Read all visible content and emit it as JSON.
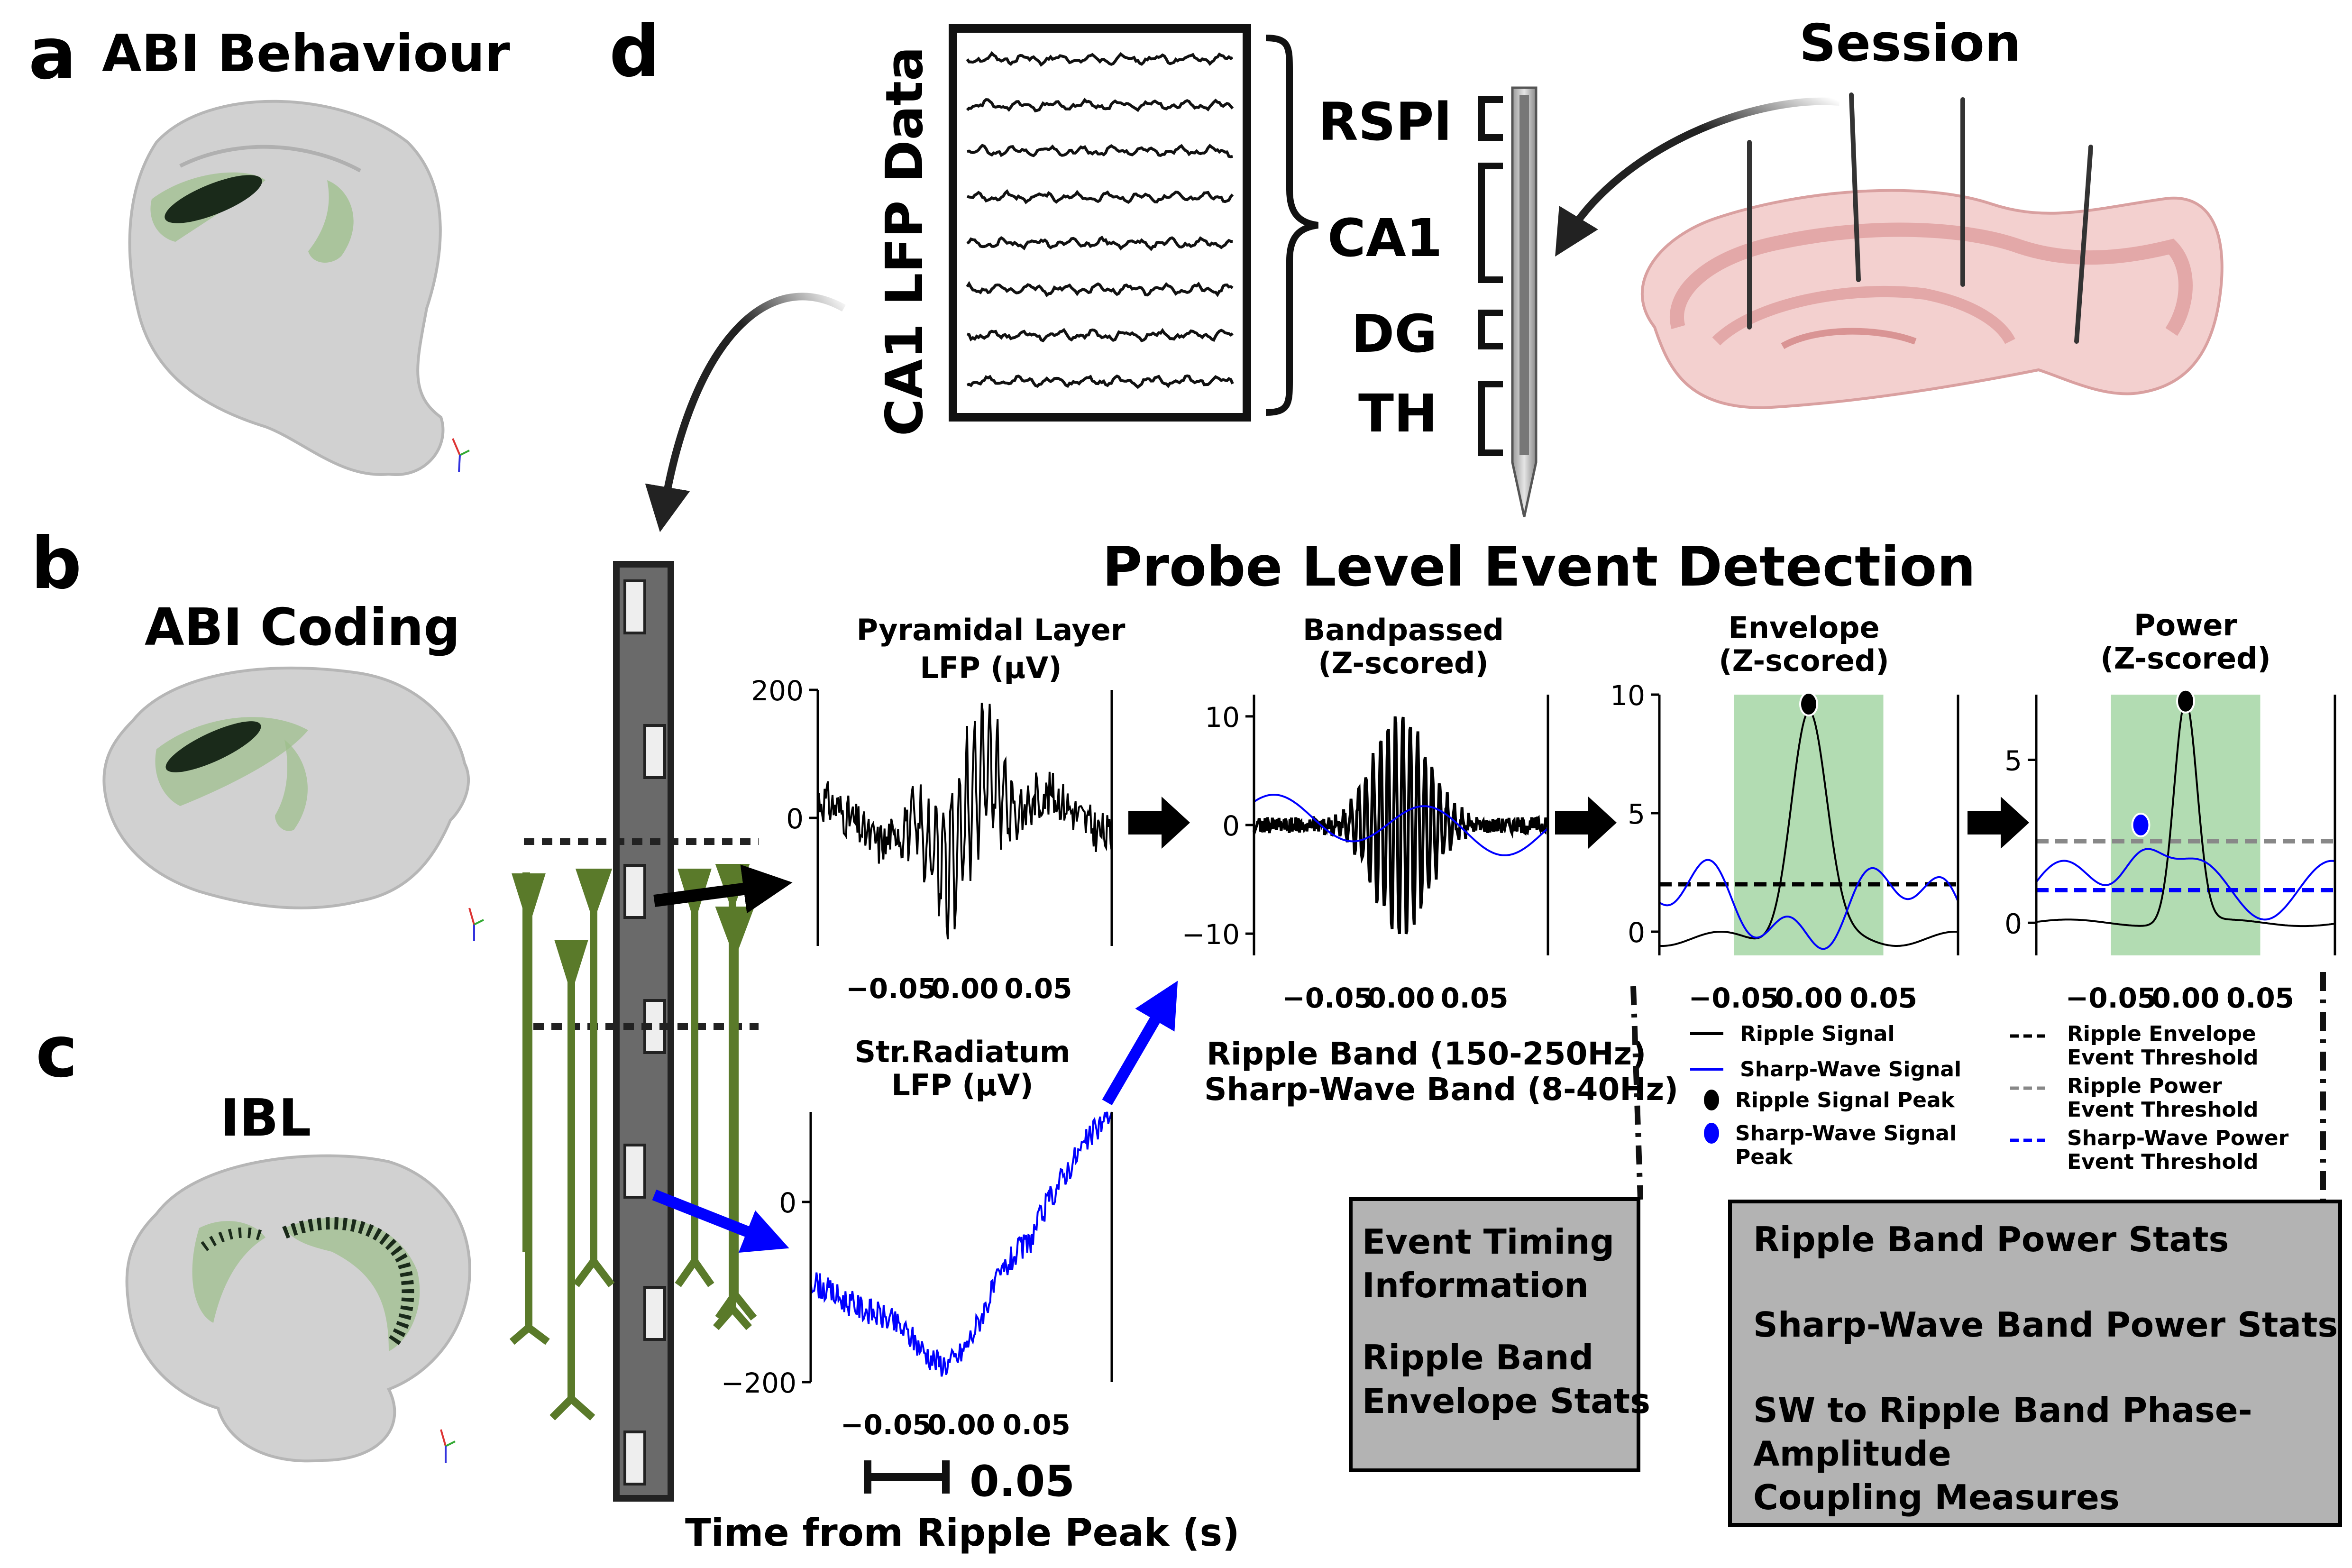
{
  "panel_a": {
    "letter": "a",
    "title": "ABI Behaviour"
  },
  "panel_b": {
    "letter": "b",
    "title": "ABI Coding"
  },
  "panel_c": {
    "letter": "c",
    "title": "IBL"
  },
  "panel_d": {
    "letter": "d",
    "session_label": "Session",
    "lfp_data_label": "CA1 LFP Data",
    "regions": [
      "RSPl",
      "CA1",
      "DG",
      "TH"
    ],
    "main_title": "Probe Level Event Detection",
    "time_axis_label": "Time from Ripple Peak (s)",
    "scale_bar_label": "0.05",
    "band_labels": [
      "Ripple Band (150-250Hz)",
      "Sharp-Wave Band (8-40Hz)"
    ],
    "box_timing": [
      "Event Timing",
      "Information",
      "",
      "Ripple Band",
      "Envelope Stats"
    ],
    "box_power": [
      "Ripple Band Power Stats",
      "",
      "Sharp-Wave Band Power Stats",
      "",
      "SW to Ripple Band Phase-",
      "Amplitude",
      "Coupling Measures"
    ]
  },
  "colors": {
    "black": "#000000",
    "blue": "#0000ff",
    "green_shade": "#b2dcb2",
    "neuron_green": "#5a7a2a",
    "grey_threshold": "#888888",
    "probe_grey": "#666666"
  },
  "chart_data": [
    {
      "type": "line",
      "title": "Pyramidal Layer LFP (μV)",
      "title_lines": [
        "Pyramidal Layer",
        "LFP (μV)"
      ],
      "series": [
        {
          "color": "#000000"
        }
      ],
      "yticks": [
        "200",
        "0"
      ],
      "ytick_values": [
        200,
        0
      ],
      "xticks": [
        "−0.05",
        "0.00",
        "0.05"
      ],
      "xtick_values": [
        -0.05,
        0.0,
        0.05
      ],
      "xlim": [
        -0.1,
        0.1
      ],
      "ylim": [
        -200,
        200
      ]
    },
    {
      "type": "line",
      "title": "Str.Radiatum LFP (μV)",
      "title_lines": [
        "Str.Radiatum",
        "LFP (μV)"
      ],
      "series": [
        {
          "color": "#0000ff"
        }
      ],
      "yticks": [
        "0",
        "−200"
      ],
      "ytick_values": [
        0,
        -200
      ],
      "xticks": [
        "−0.05",
        "0.00",
        "0.05"
      ],
      "xtick_values": [
        -0.05,
        0.0,
        0.05
      ],
      "xlim": [
        -0.1,
        0.1
      ],
      "ylim": [
        -200,
        100
      ]
    },
    {
      "type": "line",
      "title": "Bandpassed (Z-scored)",
      "title_lines": [
        "Bandpassed",
        "(Z-scored)"
      ],
      "series": [
        {
          "color": "#000000"
        },
        {
          "color": "#0000ff"
        }
      ],
      "yticks": [
        "10",
        "0",
        "−10"
      ],
      "ytick_values": [
        10,
        0,
        -10
      ],
      "xticks": [
        "−0.05",
        "0.00",
        "0.05"
      ],
      "xtick_values": [
        -0.05,
        0.0,
        0.05
      ],
      "xlim": [
        -0.1,
        0.1
      ],
      "ylim": [
        -12,
        12
      ]
    },
    {
      "type": "line",
      "title": "Envelope (Z-scored)",
      "title_lines": [
        "Envelope",
        "(Z-scored)"
      ],
      "series": [
        {
          "name": "Ripple Signal",
          "color": "#000000"
        },
        {
          "name": "Sharp-Wave Signal",
          "color": "#0000ff"
        }
      ],
      "markers": [
        {
          "name": "Ripple Signal Peak",
          "x": 0.0,
          "y": 9.6,
          "color": "#000000"
        },
        {
          "name": "Sharp-Wave Signal Peak",
          "color": "#0000ff"
        }
      ],
      "thresholds": [
        {
          "name": "Ripple Envelope Event Threshold",
          "y": 2.0,
          "color": "#000000",
          "style": "dashed"
        }
      ],
      "event_window": [
        -0.05,
        0.05
      ],
      "yticks": [
        "10",
        "5",
        "0"
      ],
      "ytick_values": [
        10,
        5,
        0
      ],
      "xticks": [
        "−0.05",
        "0.00",
        "0.05"
      ],
      "xtick_values": [
        -0.05,
        0.0,
        0.05
      ],
      "xlim": [
        -0.1,
        0.1
      ],
      "ylim": [
        -1,
        10
      ],
      "legend": [
        "Ripple Signal",
        "Sharp-Wave Signal",
        "Ripple Signal Peak",
        "Sharp-Wave Signal",
        "Peak"
      ]
    },
    {
      "type": "line",
      "title": "Power (Z-scored)",
      "title_lines": [
        "Power",
        "(Z-scored)"
      ],
      "series": [
        {
          "color": "#000000"
        },
        {
          "color": "#0000ff"
        }
      ],
      "markers": [
        {
          "x": 0.0,
          "y": 6.8,
          "color": "#000000"
        },
        {
          "x": -0.03,
          "y": 3.0,
          "color": "#0000ff"
        }
      ],
      "thresholds": [
        {
          "name": "Ripple Envelope Event Threshold",
          "color": "#000000",
          "style": "dashed"
        },
        {
          "name": "Ripple Power Event Threshold",
          "y": 2.5,
          "color": "#888888",
          "style": "dashed"
        },
        {
          "name": "Sharp-Wave Power Event Threshold",
          "y": 1.0,
          "color": "#0000ff",
          "style": "dashed"
        }
      ],
      "event_window": [
        -0.05,
        0.05
      ],
      "yticks": [
        "5",
        "0"
      ],
      "ytick_values": [
        5,
        0
      ],
      "xticks": [
        "−0.05",
        "0.00",
        "0.05"
      ],
      "xtick_values": [
        -0.05,
        0.0,
        0.05
      ],
      "xlim": [
        -0.1,
        0.1
      ],
      "ylim": [
        -1,
        7
      ],
      "legend": [
        "Ripple Envelope",
        "Event Threshold",
        "Ripple Power",
        "Event Threshold",
        "Sharp-Wave Power",
        "Event Threshold"
      ]
    }
  ]
}
